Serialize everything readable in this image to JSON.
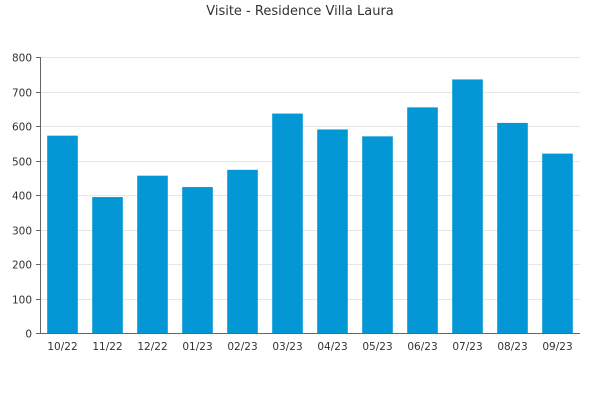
{
  "chart_data": {
    "type": "bar",
    "title": "Visite - Residence Villa Laura",
    "xlabel": "",
    "ylabel": "",
    "categories": [
      "10/22",
      "11/22",
      "12/22",
      "01/23",
      "02/23",
      "03/23",
      "04/23",
      "05/23",
      "06/23",
      "07/23",
      "08/23",
      "09/23"
    ],
    "values": [
      572,
      394,
      456,
      423,
      473,
      636,
      590,
      570,
      654,
      735,
      609,
      520
    ],
    "ylim": [
      0,
      800
    ],
    "yticks": [
      0,
      100,
      200,
      300,
      400,
      500,
      600,
      700,
      800
    ],
    "grid": true,
    "legend": "none",
    "colors": {
      "bar": "#0397d6",
      "grid": "#e6e6e6",
      "axis": "#666666"
    }
  }
}
